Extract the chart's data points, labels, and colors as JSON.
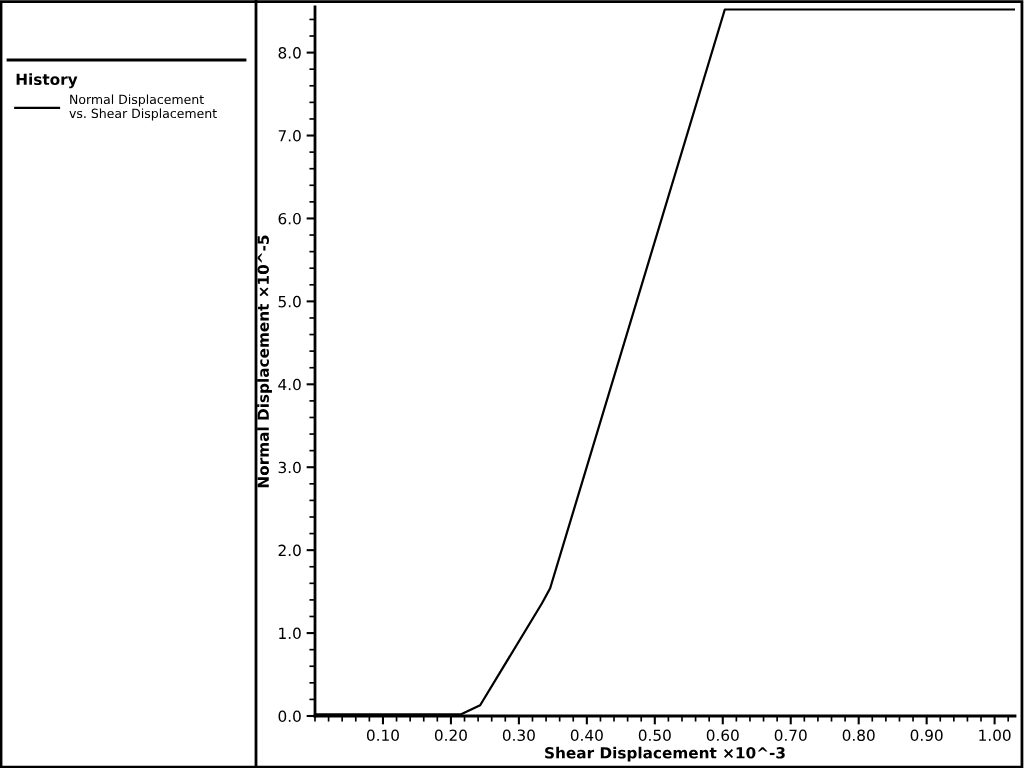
{
  "chart_data": {
    "type": "line",
    "xlabel": "Shear Displacement ×10^-3",
    "ylabel": "Normal Displacement ×10^-5",
    "legend_title": "History",
    "legend": "left",
    "series": [
      {
        "name": "Normal Displacement\nvs. Shear Displacement",
        "color": "#000000",
        "x": [
          0.0,
          0.215,
          0.243,
          0.334,
          0.346,
          0.603,
          1.03
        ],
        "values": [
          0.02,
          0.02,
          0.13,
          1.36,
          1.54,
          8.52,
          8.52
        ]
      }
    ],
    "xlim": [
      0,
      1.03
    ],
    "ylim": [
      0,
      8.55
    ],
    "xticks": [
      {
        "value": 0.1,
        "label": "0.10"
      },
      {
        "value": 0.2,
        "label": "0.20"
      },
      {
        "value": 0.3,
        "label": "0.30"
      },
      {
        "value": 0.4,
        "label": "0.40"
      },
      {
        "value": 0.5,
        "label": "0.50"
      },
      {
        "value": 0.6,
        "label": "0.60"
      },
      {
        "value": 0.7,
        "label": "0.70"
      },
      {
        "value": 0.8,
        "label": "0.80"
      },
      {
        "value": 0.9,
        "label": "0.90"
      },
      {
        "value": 1.0,
        "label": "1.00"
      }
    ],
    "yticks": [
      {
        "value": 0,
        "label": "0.0"
      },
      {
        "value": 1,
        "label": "1.0"
      },
      {
        "value": 2,
        "label": "2.0"
      },
      {
        "value": 3,
        "label": "3.0"
      },
      {
        "value": 4,
        "label": "4.0"
      },
      {
        "value": 5,
        "label": "5.0"
      },
      {
        "value": 6,
        "label": "6.0"
      },
      {
        "value": 7,
        "label": "7.0"
      },
      {
        "value": 8,
        "label": "8.0"
      }
    ],
    "grid": false,
    "line_style": "solid",
    "marker": "none"
  }
}
